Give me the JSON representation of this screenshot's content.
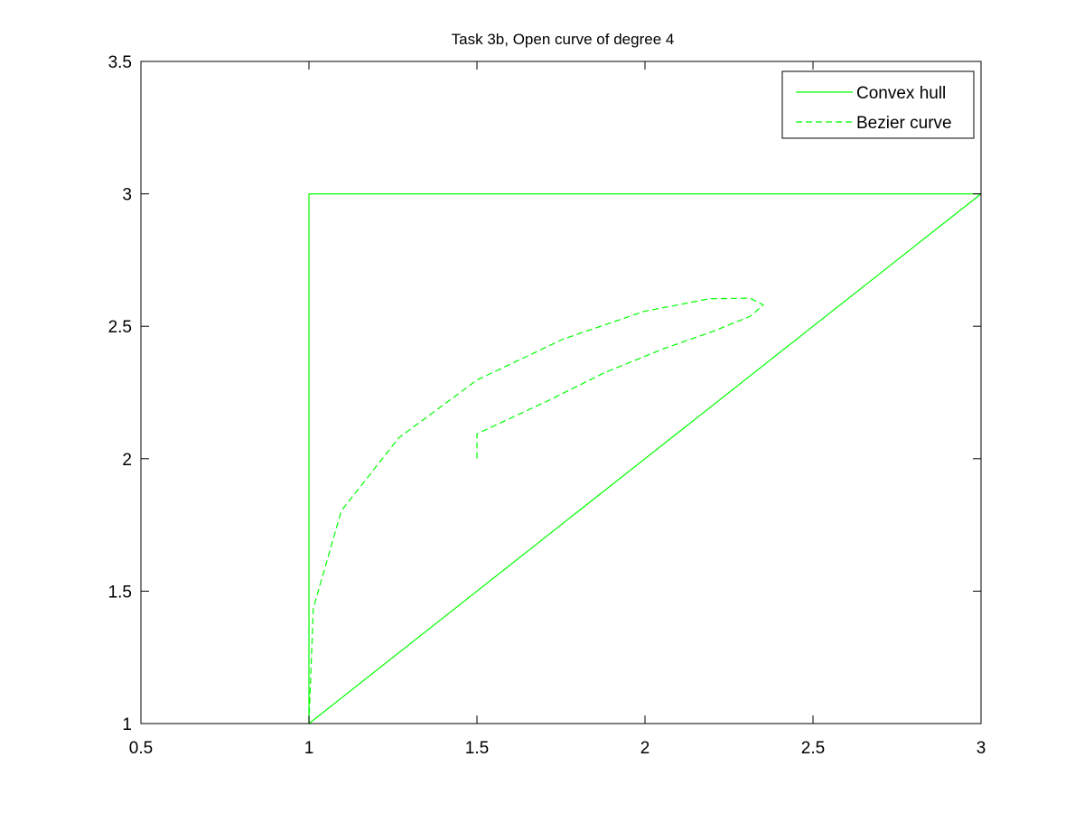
{
  "chart_data": {
    "type": "line",
    "title": "Task 3b, Open curve of degree 4",
    "xlabel": "",
    "ylabel": "",
    "xlim": [
      0.5,
      3
    ],
    "ylim": [
      1,
      3.5
    ],
    "xticks": [
      0.5,
      1,
      1.5,
      2,
      2.5,
      3
    ],
    "yticks": [
      1,
      1.5,
      2,
      2.5,
      3,
      3.5
    ],
    "xtick_labels": [
      "0.5",
      "1",
      "1.5",
      "2",
      "2.5",
      "3"
    ],
    "ytick_labels": [
      "1",
      "1.5",
      "2",
      "2.5",
      "3",
      "3.5"
    ],
    "grid": false,
    "legend_position": "top-right",
    "series": [
      {
        "name": "Convex hull",
        "style": "solid",
        "color": "#00ff00",
        "x": [
          1,
          1,
          3,
          1
        ],
        "y": [
          1,
          3,
          3,
          1
        ]
      },
      {
        "name": "Bezier curve",
        "style": "dashed",
        "color": "#00ff00",
        "control_points": [
          [
            1,
            1
          ],
          [
            1,
            3
          ],
          [
            3,
            3
          ],
          [
            3,
            3
          ],
          [
            1.5,
            2
          ]
        ],
        "x": [
          1,
          1.0128,
          1.0963,
          1.2671,
          1.5,
          1.7559,
          1.9975,
          2.1907,
          2.3125,
          2.3525,
          2.3125,
          2.2061,
          2.0539,
          1.8818,
          1.7124,
          1.5,
          1.5
        ],
        "y": [
          1,
          1.4346,
          1.8027,
          2.0789,
          2.2969,
          2.4512,
          2.5563,
          2.6036,
          2.6061,
          2.5804,
          2.5375,
          2.4827,
          2.4148,
          2.326,
          2.2195,
          2.0939,
          2
        ]
      }
    ]
  }
}
